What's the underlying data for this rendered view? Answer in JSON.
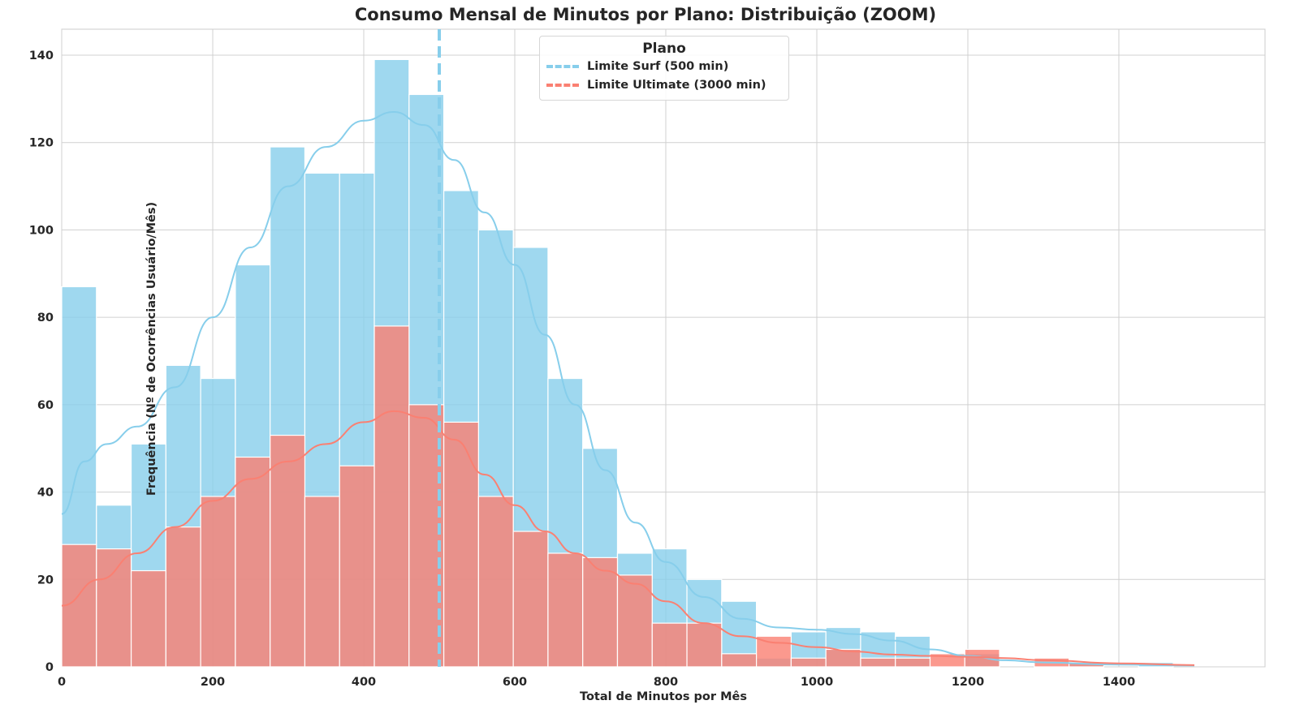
{
  "chart_data": {
    "type": "bar",
    "title": "Consumo Mensal de Minutos por Plano: Distribuição (ZOOM)",
    "xlabel": "Total de Minutos por Mês",
    "ylabel": "Frequência (Nº de Ocorrências Usuário/Mês)",
    "xlim": [
      0,
      1590
    ],
    "ylim": [
      0,
      146
    ],
    "xticks": [
      0,
      200,
      400,
      600,
      800,
      1000,
      1200,
      1400
    ],
    "yticks": [
      0,
      20,
      40,
      60,
      80,
      100,
      120,
      140
    ],
    "grid": true,
    "bin_width": 46,
    "bin_edges_start": 0,
    "legend": {
      "title": "Plano",
      "position": "upper center",
      "entries": [
        {
          "label": "Limite Surf (500 min)",
          "color": "#87CEEB",
          "style": "dashed"
        },
        {
          "label": "Limite Ultimate (3000 min)",
          "color": "#FA8072",
          "style": "dashed"
        }
      ]
    },
    "series": [
      {
        "name": "surf",
        "color": "#87CEEB",
        "values": [
          87,
          37,
          51,
          69,
          66,
          92,
          119,
          113,
          113,
          139,
          131,
          109,
          100,
          96,
          66,
          50,
          26,
          27,
          20,
          15,
          2,
          8,
          9,
          8,
          7,
          0,
          3,
          0,
          0,
          1,
          0,
          1
        ]
      },
      {
        "name": "ultimate",
        "color": "#FA8072",
        "values": [
          28,
          27,
          22,
          32,
          39,
          48,
          53,
          39,
          46,
          78,
          60,
          56,
          39,
          31,
          26,
          25,
          21,
          10,
          10,
          3,
          7,
          2,
          4,
          2,
          2,
          3,
          4,
          0,
          2,
          1,
          0,
          0
        ]
      }
    ],
    "kde": [
      {
        "name": "surf",
        "color": "#87CEEB",
        "points": [
          [
            0,
            35
          ],
          [
            30,
            47
          ],
          [
            60,
            51
          ],
          [
            100,
            55
          ],
          [
            150,
            64
          ],
          [
            200,
            80
          ],
          [
            250,
            96
          ],
          [
            300,
            110
          ],
          [
            350,
            119
          ],
          [
            400,
            125
          ],
          [
            440,
            127
          ],
          [
            480,
            124
          ],
          [
            520,
            116
          ],
          [
            560,
            104
          ],
          [
            600,
            92
          ],
          [
            640,
            76
          ],
          [
            680,
            60
          ],
          [
            720,
            45
          ],
          [
            760,
            33
          ],
          [
            800,
            24
          ],
          [
            850,
            16
          ],
          [
            900,
            11
          ],
          [
            950,
            9
          ],
          [
            1000,
            8.5
          ],
          [
            1050,
            7.5
          ],
          [
            1100,
            6
          ],
          [
            1150,
            4
          ],
          [
            1200,
            2.5
          ],
          [
            1250,
            1.5
          ],
          [
            1300,
            1
          ],
          [
            1400,
            0.5
          ],
          [
            1500,
            0.3
          ]
        ]
      },
      {
        "name": "ultimate",
        "color": "#FA8072",
        "points": [
          [
            0,
            14
          ],
          [
            50,
            20
          ],
          [
            100,
            26
          ],
          [
            150,
            32
          ],
          [
            200,
            38
          ],
          [
            250,
            43
          ],
          [
            300,
            47
          ],
          [
            350,
            51
          ],
          [
            400,
            56
          ],
          [
            440,
            58.5
          ],
          [
            480,
            57
          ],
          [
            520,
            52
          ],
          [
            560,
            44
          ],
          [
            600,
            37
          ],
          [
            640,
            31
          ],
          [
            680,
            26
          ],
          [
            720,
            22
          ],
          [
            760,
            19
          ],
          [
            800,
            15
          ],
          [
            850,
            10
          ],
          [
            900,
            7
          ],
          [
            950,
            5.5
          ],
          [
            1000,
            4.5
          ],
          [
            1050,
            3.5
          ],
          [
            1100,
            2.8
          ],
          [
            1150,
            2.5
          ],
          [
            1200,
            2.3
          ],
          [
            1250,
            2
          ],
          [
            1300,
            1.5
          ],
          [
            1400,
            0.8
          ],
          [
            1500,
            0.4
          ]
        ]
      }
    ],
    "reference_lines": [
      {
        "x": 500,
        "color": "#87CEEB",
        "style": "dashed",
        "label": "Limite Surf (500 min)"
      },
      {
        "x": 3000,
        "color": "#FA8072",
        "style": "dashed",
        "label": "Limite Ultimate (3000 min)",
        "visible": false
      }
    ]
  }
}
